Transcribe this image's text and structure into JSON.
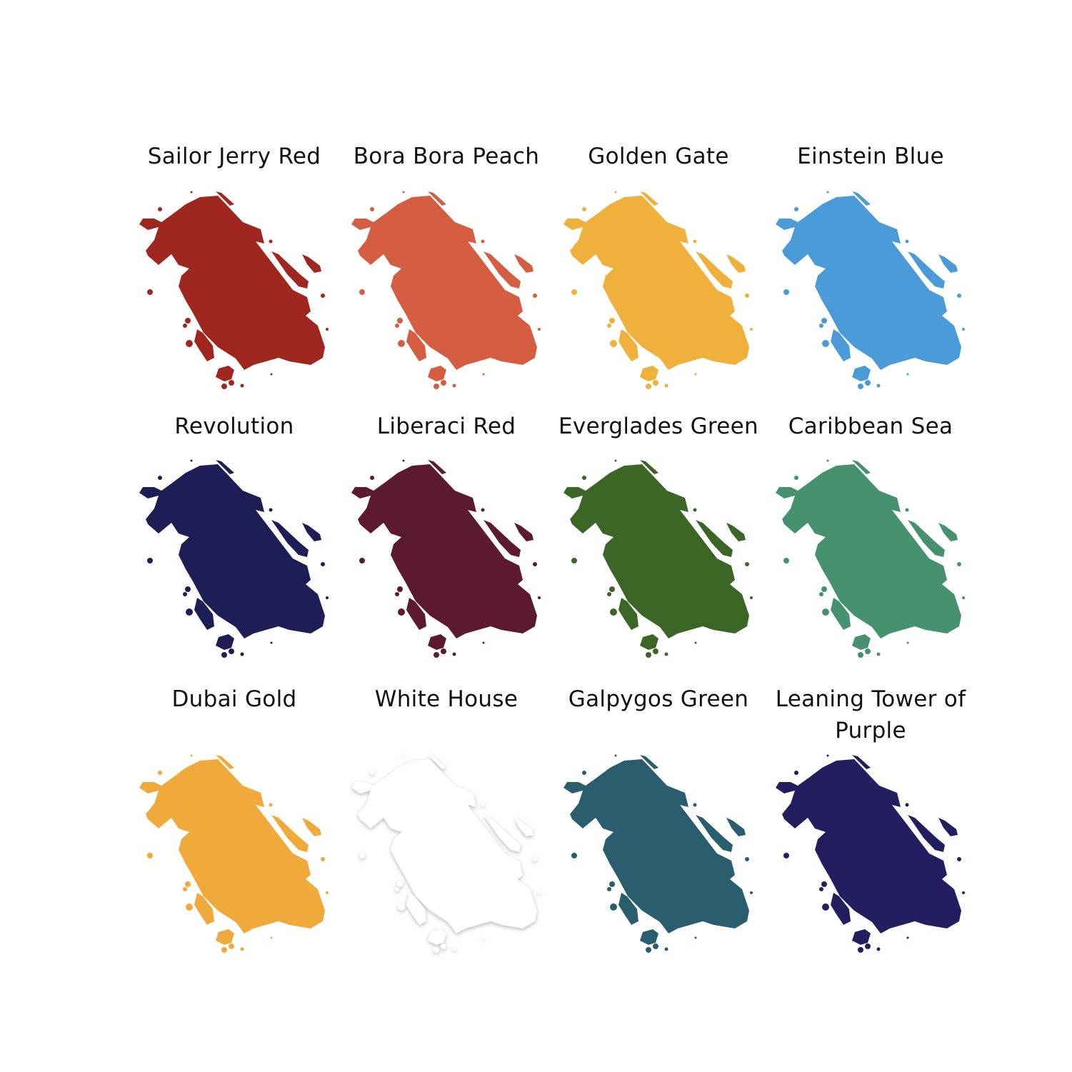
{
  "swatches": [
    {
      "name": "Sailor Jerry Red",
      "color": "#a0271f"
    },
    {
      "name": "Bora Bora Peach",
      "color": "#d45d42"
    },
    {
      "name": "Golden Gate",
      "color": "#f0b03c"
    },
    {
      "name": "Einstein Blue",
      "color": "#4a9bd8"
    },
    {
      "name": "Revolution",
      "color": "#1e1d55"
    },
    {
      "name": "Liberaci Red",
      "color": "#5c1a2f"
    },
    {
      "name": "Everglades Green",
      "color": "#3b6626"
    },
    {
      "name": "Caribbean Sea",
      "color": "#459170"
    },
    {
      "name": "Dubai Gold",
      "color": "#f0a93b"
    },
    {
      "name": "White House",
      "color": "#ffffff"
    },
    {
      "name": "Galpygos Green",
      "color": "#2a5d6e"
    },
    {
      "name": "Leaning Tower of Purple",
      "color": "#221e60"
    }
  ]
}
